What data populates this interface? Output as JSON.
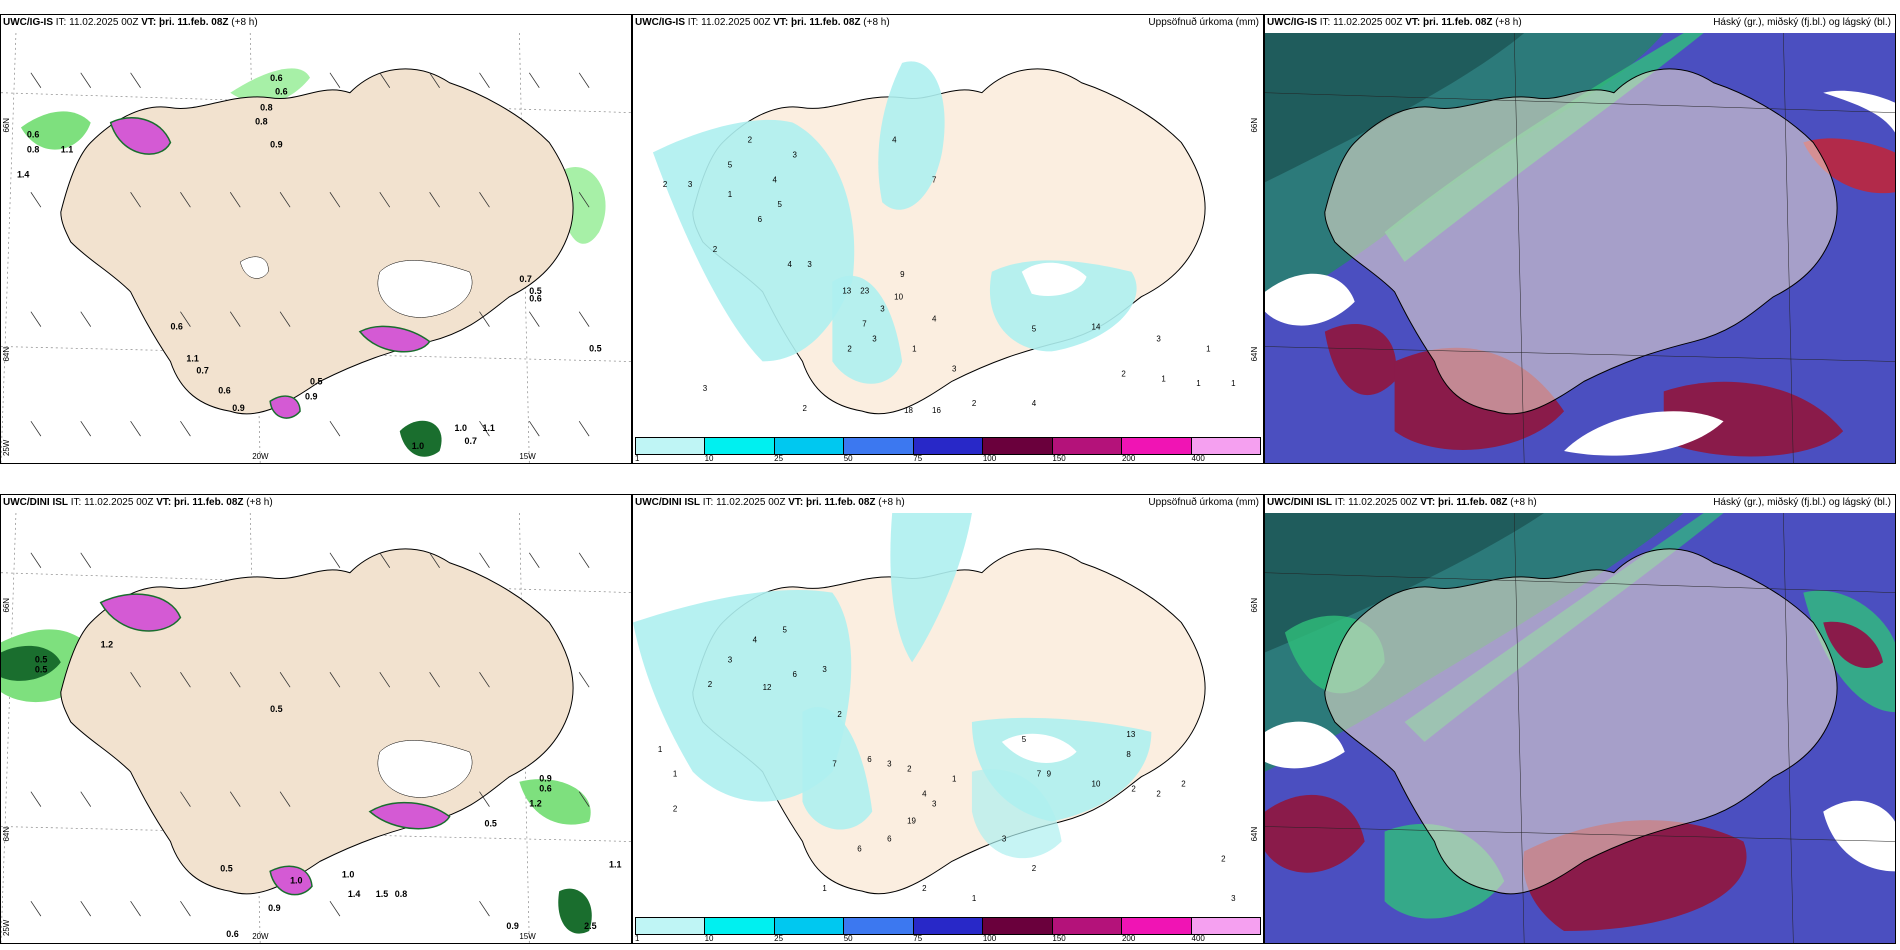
{
  "rows": [
    {
      "wind_panel": {
        "model": "UWC/IG-IS",
        "it_label": "IT:",
        "it_value": "11.02.2025 00Z",
        "vt_label": "VT:",
        "vt_value": "þri. 11.feb. 08Z",
        "lead": "(+8 h)"
      },
      "precip_panel": {
        "model": "UWC/IG-IS",
        "it_label": "IT:",
        "it_value": "11.02.2025 00Z",
        "vt_label": "VT:",
        "vt_value": "þri. 11.feb. 08Z",
        "lead": "(+8 h)",
        "right_title": "Uppsöfnuð úrkoma (mm)"
      },
      "cloud_panel": {
        "model": "UWC/IG-IS",
        "it_label": "IT:",
        "it_value": "11.02.2025 00Z",
        "vt_label": "VT:",
        "vt_value": "þri. 11.feb. 08Z",
        "lead": "(+8 h)",
        "right_title": "Háský (gr.), miðský (fj.bl.) og lágský (bl.)"
      },
      "wind_values": [
        "0.6",
        "0.6",
        "0.8",
        "0.8",
        "0.9",
        "0.6",
        "0.8",
        "1.1",
        "1.4",
        "0.6",
        "1.1",
        "0.7",
        "0.6",
        "0.9",
        "0.7",
        "0.5",
        "0.5",
        "1.0",
        "1.0",
        "1.1",
        "0.7",
        "0.5",
        "0.6",
        "0.9"
      ],
      "precip_values": [
        "2",
        "3",
        "5",
        "2",
        "4",
        "3",
        "4",
        "7",
        "2",
        "1",
        "6",
        "5",
        "4",
        "3",
        "13",
        "23",
        "10",
        "9",
        "3",
        "7",
        "3",
        "2",
        "1",
        "3",
        "5",
        "14",
        "3",
        "2",
        "1",
        "1",
        "1",
        "18",
        "16",
        "2",
        "4",
        "2",
        "3",
        "4",
        "1"
      ]
    },
    {
      "wind_panel": {
        "model": "UWC/DINI ISL",
        "it_label": "IT:",
        "it_value": "11.02.2025 00Z",
        "vt_label": "VT:",
        "vt_value": "þri. 11.feb. 08Z",
        "lead": "(+8 h)"
      },
      "precip_panel": {
        "model": "UWC/DINI ISL",
        "it_label": "IT:",
        "it_value": "11.02.2025 00Z",
        "vt_label": "VT:",
        "vt_value": "þri. 11.feb. 08Z",
        "lead": "(+8 h)",
        "right_title": "Uppsöfnuð úrkoma (mm)"
      },
      "cloud_panel": {
        "model": "UWC/DINI ISL",
        "it_label": "IT:",
        "it_value": "11.02.2025 00Z",
        "vt_label": "VT:",
        "vt_value": "þri. 11.feb. 08Z",
        "lead": "(+8 h)",
        "right_title": "Háský (gr.), miðský (fj.bl.) og lágský (bl.)"
      },
      "wind_values": [
        "0.5",
        "0.5",
        "1.2",
        "0.5",
        "0.5",
        "1.0",
        "0.9",
        "1.4",
        "0.8",
        "0.9",
        "0.6",
        "1.5",
        "1.2",
        "0.5",
        "1.1",
        "0.9",
        "2.5",
        "1.0",
        "0.6"
      ],
      "precip_values": [
        "2",
        "3",
        "4",
        "5",
        "6",
        "12",
        "1",
        "1",
        "2",
        "3",
        "2",
        "7",
        "6",
        "3",
        "2",
        "19",
        "4",
        "3",
        "1",
        "5",
        "7",
        "9",
        "10",
        "13",
        "8",
        "2",
        "2",
        "2",
        "3",
        "6",
        "6",
        "2",
        "1",
        "1",
        "2",
        "2",
        "3"
      ]
    }
  ],
  "axis_labels": {
    "lat66": "66N",
    "lat64": "64N",
    "lon25": "25W",
    "lon20": "20W",
    "lon15": "15W"
  },
  "precip_legend": {
    "labels": [
      "1",
      "10",
      "25",
      "50",
      "75",
      "100",
      "150",
      "200",
      "400"
    ],
    "colors": [
      "#bff5f5",
      "#00f0f0",
      "#00c8f0",
      "#3c78f0",
      "#2828c8",
      "#6a003c",
      "#b4127a",
      "#f014b4",
      "#f5a0f0"
    ]
  },
  "colors": {
    "land": "#f2e2cf",
    "precip_land": "#fbeee0",
    "light_precip": "#aef0f0",
    "wind_green": "#7ee07e",
    "dark_green": "#1a6e2e",
    "magenta": "#d45ad4",
    "cloud_high": "#4b4fc0",
    "cloud_mid": "#8a1b4a",
    "cloud_low": "#2c7a7a",
    "cloud_green": "#2fbf7a"
  }
}
